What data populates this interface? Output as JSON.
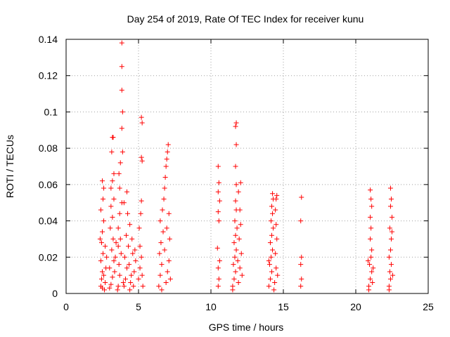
{
  "chart_data": {
    "type": "scatter",
    "title": "Day 254 of 2019, Rate Of TEC Index for receiver kunu",
    "xlabel": "GPS time / hours",
    "ylabel": "ROTI / TECUs",
    "xlim": [
      0,
      25
    ],
    "ylim": [
      0,
      0.14
    ],
    "xticks": [
      0,
      5,
      10,
      15,
      20,
      25
    ],
    "xtick_labels": [
      "0",
      "5",
      "10",
      "15",
      "20",
      "25"
    ],
    "yticks": [
      0,
      0.02,
      0.04,
      0.06,
      0.08,
      0.1,
      0.12,
      0.14
    ],
    "ytick_labels": [
      "0",
      "0.02",
      "0.04",
      "0.06",
      "0.08",
      "0.1",
      "0.12",
      "0.14"
    ],
    "grid": true,
    "marker": "+",
    "color": "#ff0000",
    "series": [
      {
        "name": "ROTI",
        "points": [
          [
            2.4,
            0.004
          ],
          [
            2.45,
            0.008
          ],
          [
            2.5,
            0.012
          ],
          [
            2.4,
            0.018
          ],
          [
            2.55,
            0.022
          ],
          [
            2.45,
            0.028
          ],
          [
            2.5,
            0.034
          ],
          [
            2.6,
            0.04
          ],
          [
            2.4,
            0.046
          ],
          [
            2.55,
            0.052
          ],
          [
            2.6,
            0.058
          ],
          [
            2.5,
            0.062
          ],
          [
            2.7,
            0.006
          ],
          [
            2.75,
            0.014
          ],
          [
            2.65,
            0.002
          ],
          [
            2.8,
            0.02
          ],
          [
            2.35,
            0.03
          ],
          [
            2.6,
            0.01
          ],
          [
            2.7,
            0.026
          ],
          [
            2.5,
            0.003
          ],
          [
            3.1,
            0.005
          ],
          [
            3.2,
            0.009
          ],
          [
            3.0,
            0.014
          ],
          [
            3.3,
            0.018
          ],
          [
            3.15,
            0.024
          ],
          [
            3.25,
            0.03
          ],
          [
            3.05,
            0.036
          ],
          [
            3.2,
            0.042
          ],
          [
            3.1,
            0.048
          ],
          [
            3.3,
            0.052
          ],
          [
            3.2,
            0.062
          ],
          [
            3.15,
            0.078
          ],
          [
            3.2,
            0.086
          ],
          [
            3.25,
            0.086
          ],
          [
            3.35,
            0.012
          ],
          [
            3.4,
            0.02
          ],
          [
            3.0,
            0.003
          ],
          [
            3.45,
            0.028
          ],
          [
            3.3,
            0.066
          ],
          [
            3.1,
            0.058
          ],
          [
            3.6,
            0.004
          ],
          [
            3.7,
            0.01
          ],
          [
            3.65,
            0.016
          ],
          [
            3.8,
            0.022
          ],
          [
            3.75,
            0.03
          ],
          [
            3.6,
            0.036
          ],
          [
            3.7,
            0.044
          ],
          [
            3.85,
            0.05
          ],
          [
            3.7,
            0.058
          ],
          [
            3.65,
            0.066
          ],
          [
            3.75,
            0.072
          ],
          [
            3.9,
            0.078
          ],
          [
            3.85,
            0.091
          ],
          [
            3.9,
            0.1
          ],
          [
            3.85,
            0.112
          ],
          [
            3.85,
            0.125
          ],
          [
            3.85,
            0.138
          ],
          [
            3.55,
            0.002
          ],
          [
            3.95,
            0.006
          ],
          [
            3.6,
            0.026
          ],
          [
            4.0,
            0.004
          ],
          [
            4.1,
            0.008
          ],
          [
            4.2,
            0.014
          ],
          [
            4.05,
            0.02
          ],
          [
            4.3,
            0.026
          ],
          [
            4.15,
            0.032
          ],
          [
            4.4,
            0.038
          ],
          [
            4.25,
            0.044
          ],
          [
            4.5,
            0.01
          ],
          [
            4.35,
            0.016
          ],
          [
            4.6,
            0.022
          ],
          [
            4.45,
            0.006
          ],
          [
            4.7,
            0.012
          ],
          [
            4.55,
            0.03
          ],
          [
            4.8,
            0.018
          ],
          [
            4.0,
            0.05
          ],
          [
            4.2,
            0.056
          ],
          [
            4.4,
            0.002
          ],
          [
            4.65,
            0.004
          ],
          [
            4.75,
            0.024
          ],
          [
            5.0,
            0.008
          ],
          [
            5.1,
            0.014
          ],
          [
            5.2,
            0.02
          ],
          [
            5.05,
            0.036
          ],
          [
            5.15,
            0.044
          ],
          [
            5.2,
            0.051
          ],
          [
            5.25,
            0.073
          ],
          [
            5.2,
            0.075
          ],
          [
            5.25,
            0.094
          ],
          [
            5.2,
            0.097
          ],
          [
            5.3,
            0.004
          ],
          [
            5.1,
            0.026
          ],
          [
            5.25,
            0.01
          ],
          [
            6.4,
            0.004
          ],
          [
            6.5,
            0.01
          ],
          [
            6.6,
            0.016
          ],
          [
            6.45,
            0.022
          ],
          [
            6.55,
            0.028
          ],
          [
            6.7,
            0.034
          ],
          [
            6.5,
            0.04
          ],
          [
            6.65,
            0.046
          ],
          [
            6.75,
            0.052
          ],
          [
            6.8,
            0.058
          ],
          [
            6.85,
            0.064
          ],
          [
            6.9,
            0.07
          ],
          [
            6.95,
            0.074
          ],
          [
            7.0,
            0.078
          ],
          [
            7.05,
            0.082
          ],
          [
            6.9,
            0.006
          ],
          [
            7.0,
            0.012
          ],
          [
            7.1,
            0.018
          ],
          [
            6.8,
            0.024
          ],
          [
            7.15,
            0.03
          ],
          [
            6.95,
            0.036
          ],
          [
            7.1,
            0.044
          ],
          [
            6.6,
            0.002
          ],
          [
            7.2,
            0.008
          ],
          [
            10.5,
            0.004
          ],
          [
            10.55,
            0.008
          ],
          [
            10.5,
            0.014
          ],
          [
            10.6,
            0.018
          ],
          [
            10.45,
            0.025
          ],
          [
            10.55,
            0.04
          ],
          [
            10.5,
            0.045
          ],
          [
            10.6,
            0.051
          ],
          [
            10.5,
            0.056
          ],
          [
            10.55,
            0.061
          ],
          [
            10.5,
            0.07
          ],
          [
            11.5,
            0.004
          ],
          [
            11.6,
            0.008
          ],
          [
            11.7,
            0.012
          ],
          [
            11.55,
            0.016
          ],
          [
            11.65,
            0.02
          ],
          [
            11.75,
            0.024
          ],
          [
            11.6,
            0.028
          ],
          [
            11.7,
            0.032
          ],
          [
            11.8,
            0.036
          ],
          [
            11.65,
            0.04
          ],
          [
            11.75,
            0.046
          ],
          [
            11.7,
            0.051
          ],
          [
            11.75,
            0.06
          ],
          [
            11.7,
            0.07
          ],
          [
            11.75,
            0.082
          ],
          [
            11.7,
            0.092
          ],
          [
            11.75,
            0.094
          ],
          [
            11.9,
            0.006
          ],
          [
            12.0,
            0.014
          ],
          [
            12.1,
            0.022
          ],
          [
            11.95,
            0.03
          ],
          [
            12.05,
            0.038
          ],
          [
            12.0,
            0.046
          ],
          [
            11.9,
            0.056
          ],
          [
            12.05,
            0.061
          ],
          [
            11.5,
            0.002
          ],
          [
            12.15,
            0.01
          ],
          [
            11.85,
            0.018
          ],
          [
            14.0,
            0.004
          ],
          [
            14.1,
            0.008
          ],
          [
            14.2,
            0.012
          ],
          [
            14.05,
            0.016
          ],
          [
            14.15,
            0.02
          ],
          [
            14.25,
            0.024
          ],
          [
            14.1,
            0.028
          ],
          [
            14.2,
            0.032
          ],
          [
            14.3,
            0.036
          ],
          [
            14.15,
            0.04
          ],
          [
            14.25,
            0.044
          ],
          [
            14.2,
            0.048
          ],
          [
            14.3,
            0.052
          ],
          [
            14.25,
            0.055
          ],
          [
            14.4,
            0.006
          ],
          [
            14.5,
            0.014
          ],
          [
            14.45,
            0.022
          ],
          [
            14.55,
            0.03
          ],
          [
            14.5,
            0.038
          ],
          [
            14.45,
            0.046
          ],
          [
            14.5,
            0.052
          ],
          [
            14.55,
            0.054
          ],
          [
            14.35,
            0.002
          ],
          [
            14.6,
            0.01
          ],
          [
            14.0,
            0.018
          ],
          [
            16.2,
            0.004
          ],
          [
            16.25,
            0.008
          ],
          [
            16.2,
            0.016
          ],
          [
            16.25,
            0.02
          ],
          [
            16.2,
            0.04
          ],
          [
            16.25,
            0.053
          ],
          [
            20.9,
            0.004
          ],
          [
            21.0,
            0.008
          ],
          [
            21.1,
            0.012
          ],
          [
            20.95,
            0.016
          ],
          [
            21.05,
            0.02
          ],
          [
            21.1,
            0.024
          ],
          [
            21.0,
            0.03
          ],
          [
            21.05,
            0.036
          ],
          [
            21.0,
            0.042
          ],
          [
            21.1,
            0.048
          ],
          [
            21.05,
            0.052
          ],
          [
            21.0,
            0.057
          ],
          [
            21.15,
            0.006
          ],
          [
            20.85,
            0.018
          ],
          [
            21.2,
            0.014
          ],
          [
            20.9,
            0.002
          ],
          [
            22.3,
            0.004
          ],
          [
            22.4,
            0.008
          ],
          [
            22.35,
            0.012
          ],
          [
            22.45,
            0.016
          ],
          [
            22.3,
            0.02
          ],
          [
            22.4,
            0.024
          ],
          [
            22.45,
            0.03
          ],
          [
            22.35,
            0.036
          ],
          [
            22.5,
            0.042
          ],
          [
            22.4,
            0.048
          ],
          [
            22.45,
            0.052
          ],
          [
            22.4,
            0.058
          ],
          [
            22.5,
            0.034
          ],
          [
            22.3,
            0.002
          ],
          [
            22.55,
            0.01
          ]
        ]
      }
    ]
  }
}
